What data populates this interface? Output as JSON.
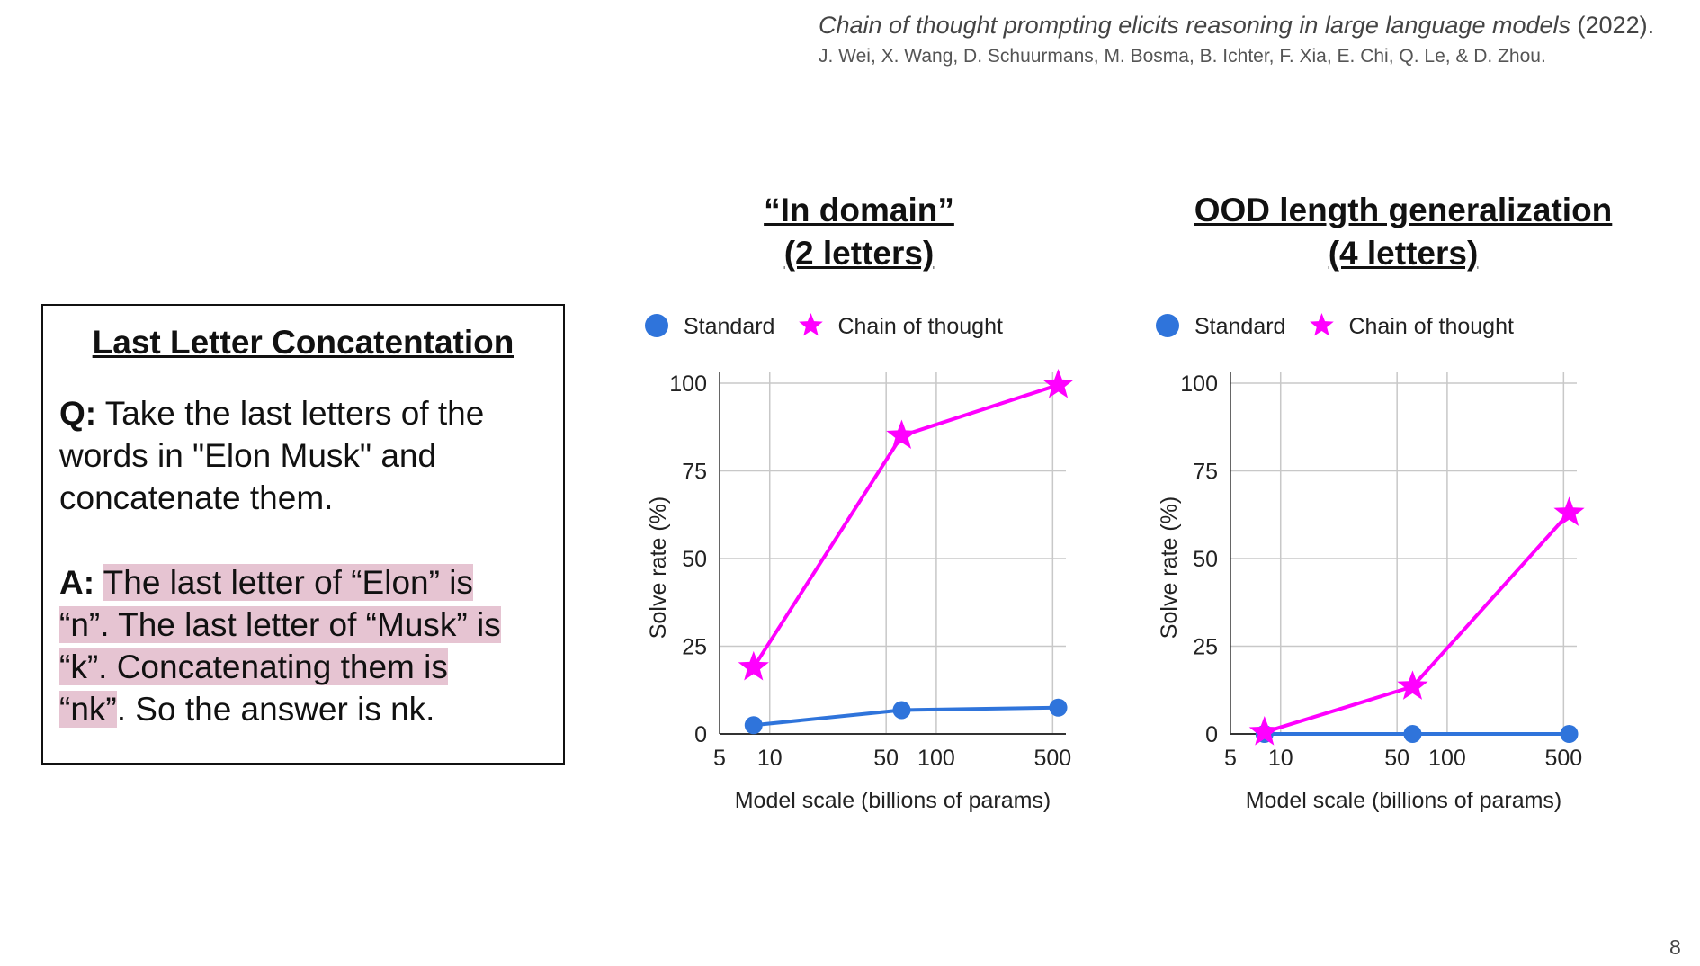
{
  "citation": {
    "title": "Chain of thought prompting elicits reasoning in large language models",
    "year": " (2022).",
    "authors": "J. Wei, X. Wang, D. Schuurmans, M. Bosma, B. Ichter, F. Xia, E. Chi, Q. Le, & D. Zhou."
  },
  "example": {
    "title": "Last Letter Concatentation",
    "q_label": "Q:",
    "q_text": " Take the last letters of the words in \"Elon Musk\" and concatenate them.",
    "a_label": "A:",
    "a_lines": [
      "The last letter of “Elon” is",
      "“n”. The last letter of “Musk” is",
      "“k”. Concatenating them is",
      "“nk”"
    ],
    "a_tail": ". So the answer is nk."
  },
  "colors": {
    "standard": "#2f74db",
    "cot": "#ff00ff"
  },
  "page_number": "8",
  "chart_data": [
    {
      "type": "line",
      "title_lines": [
        "“In domain”",
        "(2 letters)"
      ],
      "xlabel": "Model scale (billions of params)",
      "ylabel": "Solve rate (%)",
      "x_scale": "log",
      "xlim": [
        5,
        600
      ],
      "ylim": [
        0,
        100
      ],
      "x_ticks": [
        5,
        10,
        50,
        100,
        500
      ],
      "y_ticks": [
        0,
        25,
        50,
        75,
        100
      ],
      "grid": true,
      "legend_position": "top",
      "x": [
        8,
        62,
        540
      ],
      "series": [
        {
          "name": "Standard",
          "marker": "circle",
          "values": [
            2.5,
            6.8,
            7.5
          ]
        },
        {
          "name": "Chain of thought",
          "marker": "star",
          "values": [
            19,
            85,
            99.5
          ]
        }
      ]
    },
    {
      "type": "line",
      "title_lines": [
        "OOD length generalization",
        "(4 letters)"
      ],
      "xlabel": "Model scale (billions of params)",
      "ylabel": "Solve rate (%)",
      "x_scale": "log",
      "xlim": [
        5,
        600
      ],
      "ylim": [
        0,
        100
      ],
      "x_ticks": [
        5,
        10,
        50,
        100,
        500
      ],
      "y_ticks": [
        0,
        25,
        50,
        75,
        100
      ],
      "grid": true,
      "legend_position": "top",
      "x": [
        8,
        62,
        540
      ],
      "series": [
        {
          "name": "Standard",
          "marker": "circle",
          "values": [
            0,
            0,
            0
          ]
        },
        {
          "name": "Chain of thought",
          "marker": "star",
          "values": [
            0.5,
            13.5,
            63
          ]
        }
      ]
    }
  ]
}
